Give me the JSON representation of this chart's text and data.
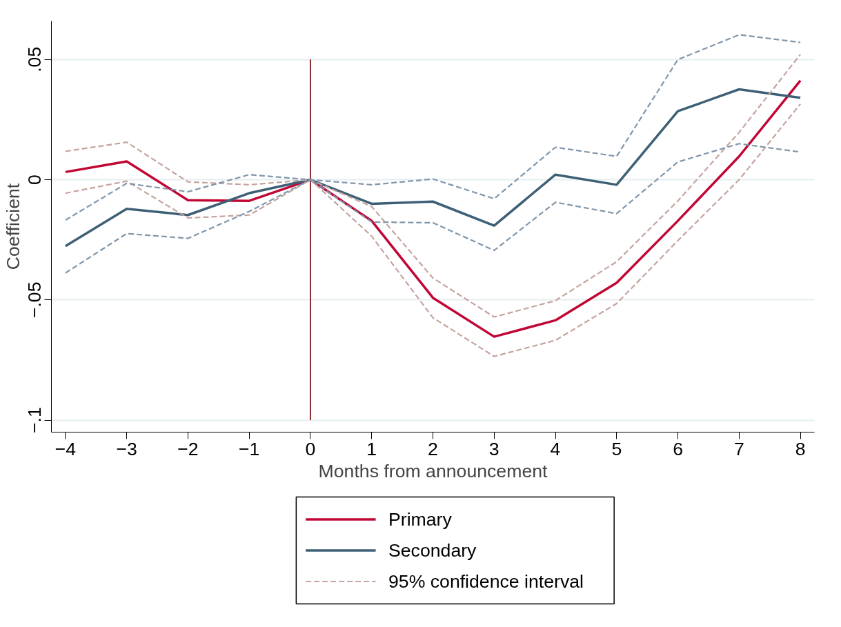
{
  "chart_data": {
    "type": "line",
    "xlabel": "Months from announcement",
    "ylabel": "Coefficient",
    "x": [
      -4,
      -3,
      -2,
      -1,
      0,
      1,
      2,
      3,
      4,
      5,
      6,
      7,
      8
    ],
    "series": [
      {
        "name": "Primary",
        "color": "#c10534",
        "line_style": "solid",
        "values": [
          0.0032,
          0.0076,
          -0.0085,
          -0.0088,
          0,
          -0.0171,
          -0.0491,
          -0.0653,
          -0.0585,
          -0.0429,
          -0.0171,
          0.0097,
          0.0412
        ]
      },
      {
        "name": "Secondary",
        "color": "#3e6076",
        "line_style": "solid",
        "values": [
          -0.0276,
          -0.0121,
          -0.0147,
          -0.0056,
          0,
          -0.01,
          -0.0091,
          -0.0191,
          0.0021,
          -0.0021,
          0.0285,
          0.0376,
          0.0341
        ]
      },
      {
        "name": "95% confidence interval",
        "color": "#c4a49f",
        "line_style": "dashed",
        "values": [
          0.0118,
          0.0156,
          -0.0009,
          -0.0021,
          0,
          -0.0112,
          -0.0409,
          -0.0571,
          -0.0503,
          -0.0341,
          -0.0088,
          0.0197,
          0.0521
        ]
      },
      {
        "color": "#c4a49f",
        "line_style": "dashed",
        "values": [
          -0.0056,
          -0.0006,
          -0.0159,
          -0.0147,
          0,
          -0.0235,
          -0.0574,
          -0.0735,
          -0.0668,
          -0.0515,
          -0.0253,
          0,
          0.0315
        ]
      },
      {
        "color": "#8096aa",
        "line_style": "dashed",
        "values": [
          -0.0168,
          -0.0015,
          -0.005,
          0.0021,
          0,
          -0.0021,
          0.0003,
          -0.0079,
          0.0135,
          0.0097,
          0.05,
          0.0603,
          0.0571
        ]
      },
      {
        "color": "#8096aa",
        "line_style": "dashed",
        "values": [
          -0.0388,
          -0.0224,
          -0.0244,
          -0.0132,
          0,
          -0.0176,
          -0.0179,
          -0.0294,
          -0.0094,
          -0.0141,
          0.0074,
          0.015,
          0.0115
        ]
      }
    ],
    "xlim": [
      -4.23,
      8.23
    ],
    "ylim": [
      -0.105,
      0.066
    ],
    "xticks": [
      {
        "value": -4,
        "label": "−4"
      },
      {
        "value": -3,
        "label": "−3"
      },
      {
        "value": -2,
        "label": "−2"
      },
      {
        "value": -1,
        "label": "−1"
      },
      0,
      1,
      2,
      3,
      4,
      5,
      6,
      7,
      8
    ],
    "yticks": [
      {
        "value": -0.1,
        "label": "−.1"
      },
      {
        "value": -0.05,
        "label": "−.05"
      },
      0,
      {
        "value": 0.05,
        "label": ".05"
      }
    ],
    "ref_lines": [
      {
        "axis": "x",
        "value": 0,
        "color": "#8b2c2c",
        "line_style": "solid"
      }
    ],
    "grid": "y",
    "legend": "bottom",
    "marker": "none"
  }
}
